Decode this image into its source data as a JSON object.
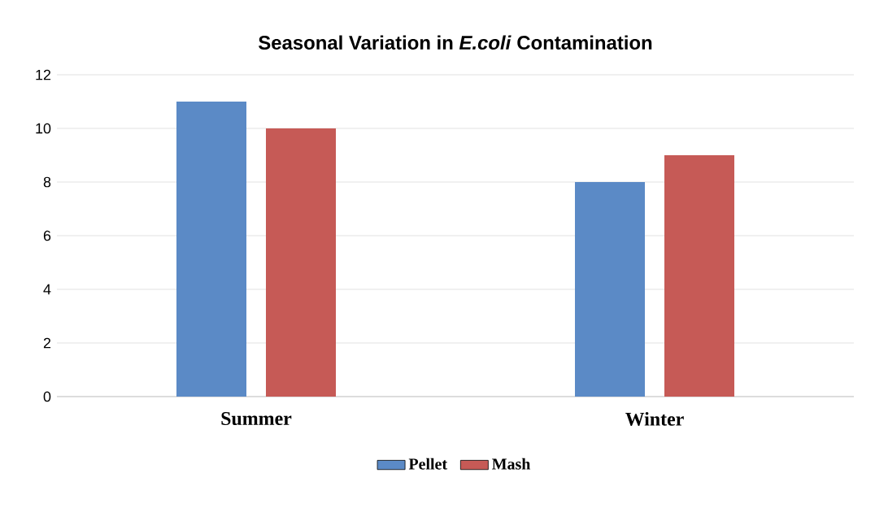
{
  "chart_data": {
    "type": "bar",
    "title": "Seasonal Variation in *E.coli* Contamination",
    "categories": [
      "Summer",
      "Winter"
    ],
    "series": [
      {
        "name": "Pellet",
        "color": "#5b8ac6",
        "values": [
          11,
          8
        ]
      },
      {
        "name": "Mash",
        "color": "#c65a56",
        "values": [
          10,
          9
        ]
      }
    ],
    "ylim": [
      0,
      12
    ],
    "yticks": [
      0,
      2,
      4,
      6,
      8,
      10,
      12
    ],
    "grid": "y",
    "legend": "bottom"
  }
}
